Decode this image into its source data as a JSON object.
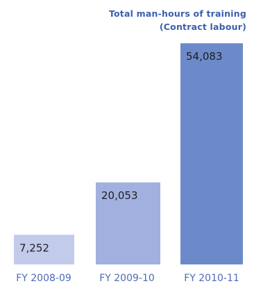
{
  "chart_data": {
    "type": "bar",
    "title": "Total man-hours of training",
    "subtitle": "(Contract labour)",
    "categories": [
      "FY 2008-09",
      "FY 2009-10",
      "FY 2010-11"
    ],
    "values": [
      7252,
      20053,
      54083
    ],
    "value_labels": [
      "7,252",
      "20,053",
      "54,083"
    ],
    "ylim": [
      0,
      56500
    ],
    "grid": false,
    "bar_colors": [
      "#c3cbeb",
      "#a2b0df",
      "#6c8ac9"
    ],
    "title_color": "#3b5fae",
    "tick_label_color": "#4c6bb3"
  }
}
